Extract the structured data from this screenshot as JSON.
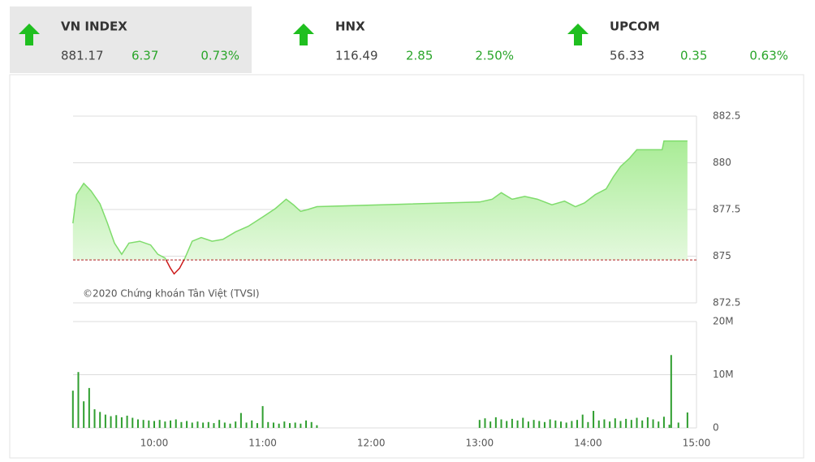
{
  "indices": [
    {
      "name": "VN INDEX",
      "value": "881.17",
      "change": "6.37",
      "percent": "0.73%"
    },
    {
      "name": "HNX",
      "value": "116.49",
      "change": "2.85",
      "percent": "2.50%"
    },
    {
      "name": "UPCOM",
      "value": "56.33",
      "change": "0.35",
      "percent": "0.63%"
    }
  ],
  "chart_data": [
    {
      "type": "line",
      "watermark": "©2020 Chứng khoán Tân Việt (TVSI)",
      "x": [
        "9:15",
        "9:17",
        "9:21",
        "9:25",
        "9:30",
        "9:34",
        "9:38",
        "9:42",
        "9:46",
        "9:52",
        "9:58",
        "10:02",
        "10:06",
        "10:09",
        "10:11",
        "10:14",
        "10:17",
        "10:21",
        "10:26",
        "10:32",
        "10:38",
        "10:45",
        "10:52",
        "11:00",
        "11:07",
        "11:13",
        "11:17",
        "11:21",
        "11:25",
        "11:30",
        "13:00",
        "13:07",
        "13:12",
        "13:18",
        "13:25",
        "13:32",
        "13:40",
        "13:47",
        "13:53",
        "13:58",
        "14:04",
        "14:10",
        "14:14",
        "14:18",
        "14:23",
        "14:27",
        "14:30",
        "14:41",
        "14:42",
        "14:55"
      ],
      "values": [
        876.76,
        878.3,
        878.9,
        878.5,
        877.8,
        876.8,
        875.7,
        875.1,
        875.7,
        875.8,
        875.6,
        875.1,
        874.9,
        874.35,
        874.05,
        874.35,
        874.9,
        875.8,
        876.0,
        875.8,
        875.9,
        876.3,
        876.6,
        877.1,
        877.55,
        878.05,
        877.75,
        877.4,
        877.5,
        877.65,
        877.9,
        878.05,
        878.4,
        878.05,
        878.2,
        878.05,
        877.75,
        877.95,
        877.65,
        877.85,
        878.3,
        878.6,
        879.25,
        879.8,
        880.25,
        880.7,
        880.7,
        880.7,
        881.17,
        881.17
      ],
      "reference": 874.8,
      "up_color": "#7fdc6c",
      "down_color": "#cc1a1a",
      "ylim": [
        872.5,
        882.5
      ],
      "yticks": [
        882.5,
        880,
        877.5,
        875,
        872.5
      ],
      "xticks": [
        "10:00",
        "11:00",
        "12:00",
        "13:00",
        "14:00",
        "15:00"
      ],
      "grid": true
    },
    {
      "type": "bar",
      "color": "#2f9e2f",
      "x": [
        "9:15",
        "9:18",
        "9:21",
        "9:24",
        "9:27",
        "9:30",
        "9:33",
        "9:36",
        "9:39",
        "9:42",
        "9:45",
        "9:48",
        "9:51",
        "9:54",
        "9:57",
        "10:00",
        "10:03",
        "10:06",
        "10:09",
        "10:12",
        "10:15",
        "10:18",
        "10:21",
        "10:24",
        "10:27",
        "10:30",
        "10:33",
        "10:36",
        "10:39",
        "10:42",
        "10:45",
        "10:48",
        "10:51",
        "10:54",
        "10:57",
        "11:00",
        "11:03",
        "11:06",
        "11:09",
        "11:12",
        "11:15",
        "11:18",
        "11:21",
        "11:24",
        "11:27",
        "11:30",
        "13:00",
        "13:03",
        "13:06",
        "13:09",
        "13:12",
        "13:15",
        "13:18",
        "13:21",
        "13:24",
        "13:27",
        "13:30",
        "13:33",
        "13:36",
        "13:39",
        "13:42",
        "13:45",
        "13:48",
        "13:51",
        "13:54",
        "13:57",
        "14:00",
        "14:03",
        "14:06",
        "14:09",
        "14:12",
        "14:15",
        "14:18",
        "14:21",
        "14:24",
        "14:27",
        "14:30",
        "14:33",
        "14:36",
        "14:39",
        "14:42",
        "14:45",
        "14:46",
        "14:50",
        "14:55"
      ],
      "values": [
        7.0,
        10.5,
        5.0,
        7.5,
        3.5,
        3.0,
        2.5,
        2.2,
        2.4,
        2.0,
        2.3,
        1.9,
        1.6,
        1.5,
        1.4,
        1.3,
        1.5,
        1.2,
        1.4,
        1.6,
        1.1,
        1.3,
        1.0,
        1.2,
        1.0,
        1.1,
        0.9,
        1.5,
        1.0,
        0.8,
        1.2,
        2.8,
        1.0,
        1.4,
        0.9,
        4.1,
        1.1,
        1.0,
        0.8,
        1.2,
        0.9,
        1.0,
        0.8,
        1.4,
        1.1,
        0.5,
        1.5,
        1.8,
        1.2,
        2.0,
        1.6,
        1.3,
        1.7,
        1.4,
        1.9,
        1.2,
        1.5,
        1.3,
        1.1,
        1.6,
        1.4,
        1.2,
        1.0,
        1.3,
        1.5,
        2.5,
        1.1,
        3.2,
        1.4,
        1.6,
        1.2,
        1.8,
        1.3,
        1.7,
        1.5,
        1.9,
        1.4,
        2.0,
        1.6,
        1.2,
        2.1,
        0.6,
        13.7,
        1.0,
        2.9
      ],
      "ylim": [
        0,
        20
      ],
      "yticks": [
        {
          "value": 20,
          "label": "20M"
        },
        {
          "value": 10,
          "label": "10M"
        },
        0
      ],
      "grid": true
    }
  ]
}
